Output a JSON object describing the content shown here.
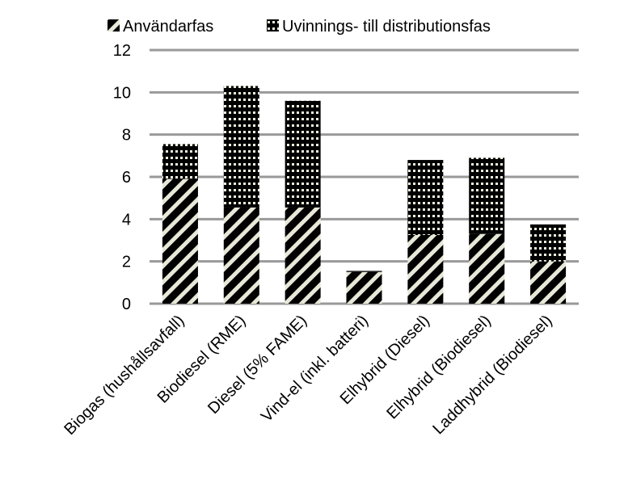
{
  "chart_data": {
    "type": "bar",
    "stacked": true,
    "categories": [
      "Biogas (hushållsavfall)",
      "Biodiesel (RME)",
      "Diesel (5% FAME)",
      "Vind-el (inkl. batteri)",
      "Elhybrid (Diesel)",
      "Elhybrid (Biodiesel)",
      "Laddhybrid (Biodiesel)"
    ],
    "series": [
      {
        "name": "Användarfas",
        "pattern": "diagonal-stripes",
        "values": [
          5.9,
          4.55,
          4.55,
          1.5,
          3.25,
          3.3,
          2.0
        ]
      },
      {
        "name": "Uvinnings- till distributionsfas",
        "pattern": "dots",
        "values": [
          1.65,
          5.75,
          5.05,
          0.05,
          3.55,
          3.6,
          1.75
        ]
      }
    ],
    "ylim": [
      0,
      12
    ],
    "yticks": [
      0,
      2,
      4,
      6,
      8,
      10,
      12
    ],
    "grid": true,
    "legend": "top",
    "title": "",
    "xlabel": "",
    "ylabel": ""
  }
}
